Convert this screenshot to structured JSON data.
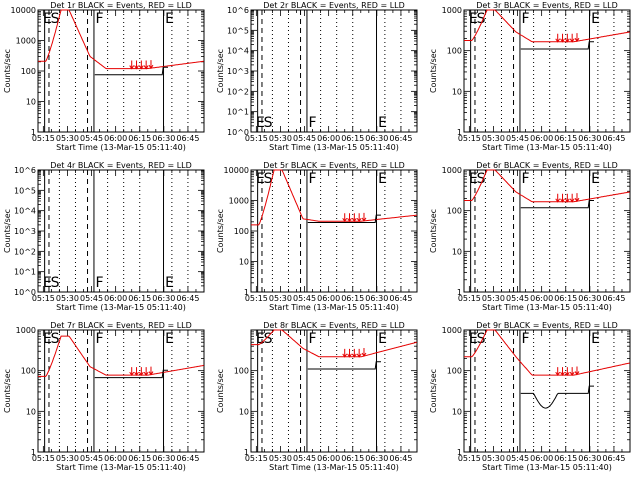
{
  "chart_data": [
    {
      "type": "line",
      "title": "Det 1r BLACK = Events, RED = LLD",
      "xlabel": "Start Time (13-Mar-15 05:11:40)",
      "ylabel": "Counts/sec",
      "y_tick_labels": [
        "1",
        "10",
        "100",
        "1000",
        "10000"
      ],
      "ylim": [
        1,
        10000
      ],
      "y_scale": "log",
      "has_data": true,
      "markers": [
        "E",
        "S",
        "F",
        "E"
      ]
    },
    {
      "type": "line",
      "title": "Det 2r BLACK = Events, RED = LLD",
      "xlabel": "Start Time (13-Mar-15 05:11:40)",
      "ylabel": "Counts/sec",
      "y_tick_labels": [
        "10^0",
        "10^1",
        "10^2",
        "10^3",
        "10^4",
        "10^5",
        "10^6"
      ],
      "ylim": [
        1,
        1000000
      ],
      "y_scale": "log",
      "has_data": false,
      "markers": [
        "E",
        "S",
        "F",
        "E"
      ]
    },
    {
      "type": "line",
      "title": "Det 3r BLACK = Events, RED = LLD",
      "xlabel": "Start Time (13-Mar-15 05:11:40)",
      "ylabel": "Counts/sec",
      "y_tick_labels": [
        "1",
        "10",
        "100",
        "1000"
      ],
      "ylim": [
        1,
        1000
      ],
      "y_scale": "log",
      "has_data": true,
      "markers": [
        "E",
        "S",
        "F",
        "E"
      ]
    },
    {
      "type": "line",
      "title": "Det 4r BLACK = Events, RED = LLD",
      "xlabel": "Start Time (13-Mar-15 05:11:40)",
      "ylabel": "Counts/sec",
      "y_tick_labels": [
        "10^0",
        "10^1",
        "10^2",
        "10^3",
        "10^4",
        "10^5",
        "10^6"
      ],
      "ylim": [
        1,
        1000000
      ],
      "y_scale": "log",
      "has_data": false,
      "markers": [
        "E",
        "S",
        "F",
        "E"
      ]
    },
    {
      "type": "line",
      "title": "Det 5r BLACK = Events, RED = LLD",
      "xlabel": "Start Time (13-Mar-15 05:11:40)",
      "ylabel": "Counts/sec",
      "y_tick_labels": [
        "1",
        "10",
        "100",
        "1000",
        "10000"
      ],
      "ylim": [
        1,
        10000
      ],
      "y_scale": "log",
      "has_data": true,
      "markers": [
        "E",
        "S",
        "F",
        "E"
      ]
    },
    {
      "type": "line",
      "title": "Det 6r BLACK = Events, RED = LLD",
      "xlabel": "Start Time (13-Mar-15 05:11:40)",
      "ylabel": "Counts/sec",
      "y_tick_labels": [
        "1",
        "10",
        "100",
        "1000"
      ],
      "ylim": [
        1,
        1000
      ],
      "y_scale": "log",
      "has_data": true,
      "markers": [
        "E",
        "S",
        "F",
        "E"
      ]
    },
    {
      "type": "line",
      "title": "Det 7r BLACK = Events, RED = LLD",
      "xlabel": "Start Time (13-Mar-15 05:11:40)",
      "ylabel": "Counts/sec",
      "y_tick_labels": [
        "1",
        "10",
        "100",
        "1000"
      ],
      "ylim": [
        1,
        1000
      ],
      "y_scale": "log",
      "has_data": true,
      "markers": [
        "E",
        "S",
        "F",
        "E"
      ]
    },
    {
      "type": "line",
      "title": "Det 8r BLACK = Events, RED = LLD",
      "xlabel": "Start Time (13-Mar-15 05:11:40)",
      "ylabel": "Counts/sec",
      "y_tick_labels": [
        "1",
        "10",
        "100"
      ],
      "ylim": [
        1,
        1000
      ],
      "y_scale": "log",
      "has_data": true,
      "markers": [
        "E",
        "S",
        "F",
        "E"
      ]
    },
    {
      "type": "line",
      "title": "Det 9r BLACK = Events, RED = LLD",
      "xlabel": "Start Time (13-Mar-15 05:11:40)",
      "ylabel": "Counts/sec",
      "y_tick_labels": [
        "1",
        "10",
        "100",
        "1000"
      ],
      "ylim": [
        1,
        1000
      ],
      "y_scale": "log",
      "has_data": true,
      "markers": [
        "E",
        "S",
        "F",
        "E"
      ]
    }
  ],
  "x_tick_labels": [
    "05:15",
    "05:30",
    "05:45",
    "06:00",
    "06:15",
    "06:30",
    "06:45"
  ],
  "x_ticks_minutes": [
    15,
    30,
    45,
    60,
    75,
    90,
    105
  ],
  "xlim_minutes": [
    11.67,
    115
  ]
}
